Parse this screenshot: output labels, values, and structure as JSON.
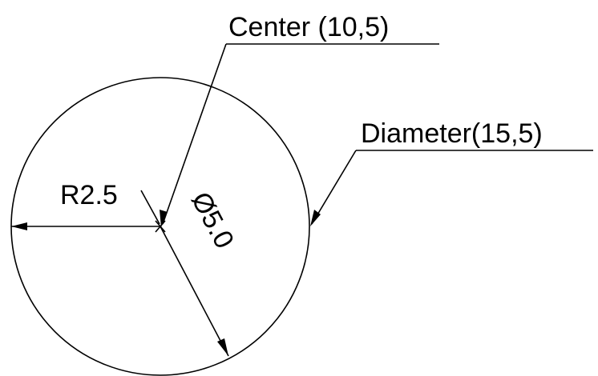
{
  "labels": {
    "center": "Center (10,5)",
    "diameter_point": "Diameter(15,5)",
    "radius": "R2.5",
    "diameter": "Ø5.0"
  }
}
